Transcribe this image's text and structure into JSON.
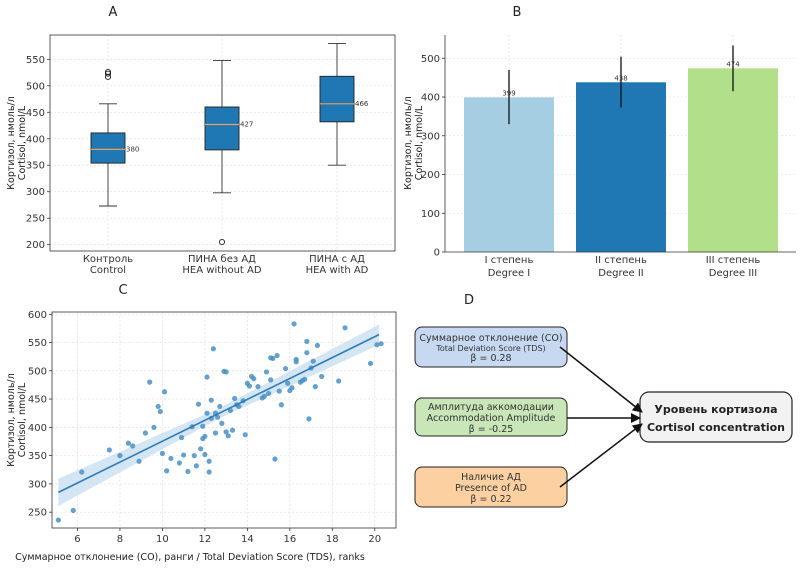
{
  "colors": {
    "box": "#1f77b4",
    "median": "#e8a060",
    "grid": "#dddddd",
    "scatter": "#4a90c4",
    "fit": "#2f7bb5",
    "band": "#c6dcef",
    "barI": "#a6cee3",
    "barII": "#1f78b4",
    "barIII": "#b2df8a",
    "nodeTDS": "#c6d9f1",
    "nodeAA": "#c8e6b8",
    "nodeAD": "#fdd0a2",
    "target": "#f2f2f2"
  },
  "chart_data": [
    {
      "panel": "A",
      "type": "box",
      "title": "A",
      "ylabel_ru": "Кортизол, нмоль/л",
      "ylabel_en": "Cortisol, nmol/L",
      "ylim": [
        188,
        596
      ],
      "yticks": [
        200,
        250,
        300,
        350,
        400,
        450,
        500,
        550
      ],
      "groups": [
        {
          "label_ru": "Контроль",
          "label_en": "Control",
          "min": 273,
          "q1": 354,
          "median": 380,
          "q3": 411,
          "max": 466,
          "outliers": [
            517,
            523,
            526
          ],
          "median_label": "380"
        },
        {
          "label_ru": "ПИНА без АД",
          "label_en": "HEA without AD",
          "min": 298,
          "q1": 379,
          "median": 427,
          "q3": 460,
          "max": 548,
          "outliers": [
            205
          ],
          "median_label": "427"
        },
        {
          "label_ru": "ПИНА с АД",
          "label_en": "HEA with AD",
          "min": 350,
          "q1": 432,
          "median": 466,
          "q3": 518,
          "max": 580,
          "outliers": [],
          "median_label": "466"
        }
      ]
    },
    {
      "panel": "B",
      "type": "bar",
      "title": "B",
      "ylabel_ru": "Кортизол, нмоль/л",
      "ylabel_en": "Cortisol, nmol/L",
      "ylim": [
        0,
        560
      ],
      "yticks": [
        0,
        100,
        200,
        300,
        400,
        500
      ],
      "categories_ru": [
        "I степень",
        "II степень",
        "III степень"
      ],
      "categories_en": [
        "Degree I",
        "Degree II",
        "Degree III"
      ],
      "values": [
        399,
        438,
        474
      ],
      "value_labels": [
        "399",
        "438",
        "474"
      ],
      "err_low": [
        330,
        373,
        415
      ],
      "err_high": [
        470,
        504,
        533
      ]
    },
    {
      "panel": "C",
      "type": "scatter",
      "title": "C",
      "xlabel": "Суммарное отклонение (СО), ранги / Total Deviation Score (TDS), ranks",
      "ylabel_ru": "Кортизол, нмоль/л",
      "ylabel_en": "Cortisol, nmol/L",
      "xlim": [
        4.8,
        21.0
      ],
      "ylim": [
        222,
        604
      ],
      "xticks": [
        6,
        8,
        10,
        12,
        14,
        16,
        18,
        20
      ],
      "yticks": [
        250,
        300,
        350,
        400,
        450,
        500,
        550,
        600
      ],
      "fit": {
        "x": [
          5.1,
          20.2
        ],
        "y": [
          285,
          564
        ]
      },
      "points": [
        [
          5.1,
          236
        ],
        [
          5.8,
          253
        ],
        [
          6.2,
          321
        ],
        [
          7.5,
          360
        ],
        [
          8.0,
          350
        ],
        [
          8.4,
          372
        ],
        [
          8.6,
          367
        ],
        [
          8.9,
          340
        ],
        [
          9.2,
          390
        ],
        [
          9.4,
          480
        ],
        [
          9.6,
          400
        ],
        [
          9.8,
          437
        ],
        [
          9.9,
          428
        ],
        [
          10.0,
          354
        ],
        [
          10.1,
          463
        ],
        [
          10.2,
          323
        ],
        [
          10.4,
          345
        ],
        [
          10.8,
          337
        ],
        [
          10.9,
          382
        ],
        [
          11.0,
          351
        ],
        [
          11.2,
          322
        ],
        [
          11.4,
          401
        ],
        [
          11.5,
          350
        ],
        [
          11.6,
          332
        ],
        [
          11.7,
          441
        ],
        [
          11.8,
          362
        ],
        [
          11.9,
          380
        ],
        [
          11.9,
          402
        ],
        [
          12.0,
          352
        ],
        [
          12.0,
          384
        ],
        [
          12.1,
          489
        ],
        [
          12.1,
          425
        ],
        [
          12.2,
          340
        ],
        [
          12.2,
          321
        ],
        [
          12.3,
          416
        ],
        [
          12.3,
          448
        ],
        [
          12.4,
          539
        ],
        [
          12.5,
          425
        ],
        [
          12.5,
          390
        ],
        [
          12.6,
          418
        ],
        [
          12.7,
          437
        ],
        [
          12.8,
          407
        ],
        [
          12.9,
          499
        ],
        [
          13.0,
          498
        ],
        [
          13.0,
          392
        ],
        [
          13.1,
          385
        ],
        [
          13.2,
          430
        ],
        [
          13.3,
          395
        ],
        [
          13.4,
          451
        ],
        [
          13.5,
          440
        ],
        [
          13.6,
          437
        ],
        [
          13.8,
          447
        ],
        [
          13.9,
          387
        ],
        [
          14.0,
          478
        ],
        [
          14.1,
          473
        ],
        [
          14.2,
          490
        ],
        [
          14.3,
          486
        ],
        [
          14.5,
          472
        ],
        [
          14.7,
          452
        ],
        [
          14.8,
          455
        ],
        [
          14.9,
          498
        ],
        [
          15.0,
          460
        ],
        [
          15.1,
          523
        ],
        [
          15.1,
          484
        ],
        [
          15.2,
          522
        ],
        [
          15.3,
          344
        ],
        [
          15.4,
          527
        ],
        [
          15.5,
          464
        ],
        [
          15.6,
          440
        ],
        [
          15.8,
          504
        ],
        [
          15.9,
          478
        ],
        [
          16.0,
          465
        ],
        [
          16.1,
          470
        ],
        [
          16.2,
          583
        ],
        [
          16.3,
          520
        ],
        [
          16.3,
          516
        ],
        [
          16.5,
          480
        ],
        [
          16.6,
          483
        ],
        [
          16.7,
          485
        ],
        [
          16.8,
          532
        ],
        [
          16.8,
          552
        ],
        [
          16.9,
          415
        ],
        [
          17.0,
          505
        ],
        [
          17.1,
          517
        ],
        [
          17.2,
          472
        ],
        [
          17.3,
          545
        ],
        [
          17.5,
          490
        ],
        [
          18.3,
          482
        ],
        [
          18.6,
          576
        ],
        [
          19.8,
          513
        ],
        [
          20.1,
          546
        ],
        [
          20.3,
          548
        ]
      ]
    }
  ],
  "diagram": {
    "title": "D",
    "nodes": [
      {
        "line1": "Суммарное отклонение (СО)",
        "line2": "Total Deviation Score (TDS)",
        "line3": "β = 0.28"
      },
      {
        "line1": "Амплитуда аккомодации",
        "line2": "Accommodation Amplitude",
        "line3": "β = -0.25"
      },
      {
        "line1": "Наличие АД",
        "line2": "Presence of AD",
        "line3": "β = 0.22"
      }
    ],
    "target": {
      "line1": "Уровень кортизола",
      "line2": "Cortisol concentration"
    }
  }
}
